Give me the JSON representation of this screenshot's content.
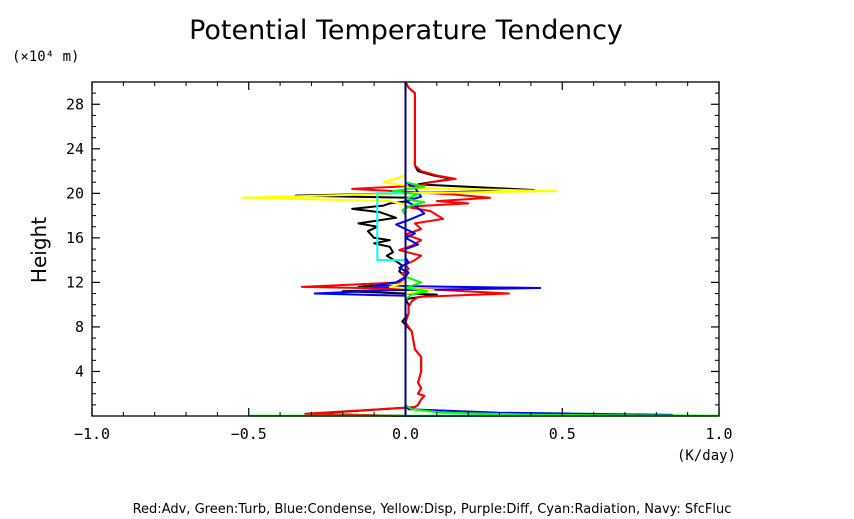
{
  "chart_data": {
    "type": "line",
    "title": "Potential Temperature Tendency",
    "ylabel": "Height",
    "yunit": "(×10⁴ m)",
    "xunit": "(K/day)",
    "xlim": [
      -1.0,
      1.0
    ],
    "ylim": [
      0,
      30
    ],
    "x_ticks": [
      -1.0,
      -0.5,
      0.0,
      0.5,
      1.0
    ],
    "x_tick_labels": [
      "−1.0",
      "−0.5",
      "0.0",
      "0.5",
      "1.0"
    ],
    "y_ticks": [
      4,
      8,
      12,
      16,
      20,
      24,
      28
    ],
    "y_tick_labels": [
      "4",
      "8",
      "12",
      "16",
      "20",
      "24",
      "28"
    ],
    "legend_text": "Red:Adv, Green:Turb, Blue:Condense, Yellow:Disp, Purple:Diff, Cyan:Radiation, Navy: SfcFluc",
    "grid": false,
    "series": [
      {
        "color": "#000000",
        "points": [
          [
            0,
            30
          ],
          [
            0.01,
            29.5
          ],
          [
            0.03,
            29
          ],
          [
            0.03,
            26
          ],
          [
            0.03,
            22.5
          ],
          [
            0.04,
            22
          ],
          [
            0.09,
            21.6
          ],
          [
            0.15,
            21.3
          ],
          [
            0.08,
            21
          ],
          [
            0.04,
            20.8
          ],
          [
            0.41,
            20.3
          ],
          [
            0.0,
            20.0
          ],
          [
            -0.35,
            19.8
          ],
          [
            0.02,
            19.6
          ],
          [
            0.01,
            19.3
          ],
          [
            -0.05,
            19.1
          ],
          [
            -0.07,
            18.9
          ],
          [
            -0.17,
            18.6
          ],
          [
            -0.08,
            18.3
          ],
          [
            -0.03,
            17.8
          ],
          [
            -0.08,
            17.6
          ],
          [
            -0.15,
            17.3
          ],
          [
            -0.09,
            17.0
          ],
          [
            -0.12,
            16.6
          ],
          [
            -0.1,
            16.0
          ],
          [
            -0.05,
            15.8
          ],
          [
            -0.1,
            15.5
          ],
          [
            -0.05,
            15.2
          ],
          [
            -0.04,
            14.7
          ],
          [
            -0.06,
            14.4
          ],
          [
            -0.03,
            13.9
          ],
          [
            -0.01,
            13.5
          ],
          [
            -0.02,
            13.0
          ],
          [
            0.0,
            12.5
          ],
          [
            -0.02,
            12.0
          ],
          [
            -0.15,
            11.6
          ],
          [
            0.05,
            11.4
          ],
          [
            -0.2,
            11.2
          ],
          [
            0.1,
            10.9
          ],
          [
            0.0,
            10.5
          ],
          [
            0.01,
            10.0
          ],
          [
            0.01,
            9.2
          ],
          [
            -0.01,
            8.5
          ],
          [
            0.02,
            7.6
          ],
          [
            0.03,
            6.0
          ],
          [
            0.05,
            5.3
          ],
          [
            0.05,
            4.0
          ],
          [
            0.04,
            3.0
          ],
          [
            0.05,
            2.5
          ],
          [
            0.04,
            2.0
          ],
          [
            0.06,
            1.8
          ],
          [
            0.05,
            1.5
          ],
          [
            0.04,
            1.0
          ],
          [
            0.03,
            0.8
          ],
          [
            -0.3,
            0.2
          ],
          [
            0.0,
            0.0
          ]
        ]
      },
      {
        "color": "#ff0000",
        "points": [
          [
            0,
            30
          ],
          [
            0.01,
            29.5
          ],
          [
            0.03,
            29
          ],
          [
            0.03,
            26
          ],
          [
            0.03,
            22.5
          ],
          [
            0.05,
            22
          ],
          [
            0.1,
            21.6
          ],
          [
            0.16,
            21.3
          ],
          [
            0.08,
            21
          ],
          [
            0.05,
            20.7
          ],
          [
            -0.17,
            20.4
          ],
          [
            0.03,
            20.1
          ],
          [
            0.15,
            19.9
          ],
          [
            0.27,
            19.6
          ],
          [
            0.1,
            19.3
          ],
          [
            0.2,
            19.1
          ],
          [
            0.0,
            18.8
          ],
          [
            0.08,
            18.4
          ],
          [
            0.12,
            17.7
          ],
          [
            0.03,
            17.3
          ],
          [
            0.05,
            16.8
          ],
          [
            0.0,
            16.3
          ],
          [
            0.05,
            15.8
          ],
          [
            0.02,
            15.3
          ],
          [
            -0.02,
            14.9
          ],
          [
            0.05,
            14.4
          ],
          [
            0.03,
            14.0
          ],
          [
            0.0,
            13.6
          ],
          [
            0.01,
            13.2
          ],
          [
            -0.01,
            12.8
          ],
          [
            0.0,
            12.4
          ],
          [
            -0.02,
            12.0
          ],
          [
            -0.33,
            11.6
          ],
          [
            0.06,
            11.4
          ],
          [
            0.33,
            11.0
          ],
          [
            0.04,
            10.7
          ],
          [
            0.02,
            10.3
          ],
          [
            0.01,
            9.8
          ],
          [
            0.01,
            9.2
          ],
          [
            0.0,
            8.4
          ],
          [
            0.02,
            7.6
          ],
          [
            0.03,
            6.0
          ],
          [
            0.05,
            5.3
          ],
          [
            0.05,
            4.0
          ],
          [
            0.04,
            3.0
          ],
          [
            0.05,
            2.5
          ],
          [
            0.04,
            2.0
          ],
          [
            0.06,
            1.8
          ],
          [
            0.05,
            1.5
          ],
          [
            0.04,
            1.0
          ],
          [
            0.03,
            0.8
          ],
          [
            -0.32,
            0.2
          ],
          [
            0.0,
            0.0
          ]
        ]
      },
      {
        "color": "#0000ff",
        "points": [
          [
            0,
            30
          ],
          [
            0,
            22
          ],
          [
            0.0,
            21.0
          ],
          [
            0.03,
            20.5
          ],
          [
            0.05,
            19.7
          ],
          [
            0.0,
            19.3
          ],
          [
            0.03,
            18.9
          ],
          [
            0.06,
            18.2
          ],
          [
            0.01,
            17.6
          ],
          [
            -0.03,
            17.2
          ],
          [
            0.0,
            16.8
          ],
          [
            0.03,
            16.4
          ],
          [
            0.0,
            16.0
          ],
          [
            0.04,
            15.4
          ],
          [
            0.0,
            15.0
          ],
          [
            0.0,
            14.2
          ],
          [
            0.01,
            13.8
          ],
          [
            -0.02,
            13.3
          ],
          [
            0.01,
            12.9
          ],
          [
            0.0,
            12.5
          ],
          [
            -0.03,
            12.0
          ],
          [
            -0.1,
            11.7
          ],
          [
            0.43,
            11.5
          ],
          [
            -0.05,
            11.3
          ],
          [
            -0.29,
            11.0
          ],
          [
            0.0,
            10.8
          ],
          [
            0.0,
            10.0
          ],
          [
            0.0,
            5.0
          ],
          [
            0.0,
            1.0
          ],
          [
            0.01,
            0.6
          ],
          [
            0.3,
            0.3
          ],
          [
            0.85,
            0.1
          ],
          [
            0.0,
            0.0
          ]
        ]
      },
      {
        "color": "#ffff00",
        "points": [
          [
            0,
            30
          ],
          [
            0.0,
            21.6
          ],
          [
            -0.07,
            21.0
          ],
          [
            0.0,
            20.7
          ],
          [
            0.01,
            20.5
          ],
          [
            0.48,
            20.2
          ],
          [
            0.0,
            20.0
          ],
          [
            -0.52,
            19.6
          ],
          [
            -0.05,
            19.3
          ],
          [
            0.0,
            19.0
          ],
          [
            0.0,
            18.0
          ],
          [
            0.0,
            14.0
          ],
          [
            0.0,
            12.0
          ],
          [
            -0.05,
            11.6
          ],
          [
            0.09,
            11.3
          ],
          [
            0.0,
            11.0
          ],
          [
            0.0,
            5.0
          ],
          [
            0.0,
            0.0
          ]
        ]
      },
      {
        "color": "#00ff00",
        "points": [
          [
            0,
            30
          ],
          [
            0.0,
            21.0
          ],
          [
            0.06,
            20.6
          ],
          [
            -0.04,
            20.2
          ],
          [
            0.04,
            19.9
          ],
          [
            0.0,
            19.5
          ],
          [
            0.06,
            19.2
          ],
          [
            0.02,
            18.9
          ],
          [
            -0.01,
            18.5
          ],
          [
            0.0,
            18.0
          ],
          [
            0.0,
            12.5
          ],
          [
            0.05,
            12.0
          ],
          [
            0.0,
            11.5
          ],
          [
            0.07,
            11.2
          ],
          [
            0.02,
            10.9
          ],
          [
            0.0,
            10.5
          ],
          [
            0.0,
            1.0
          ],
          [
            0.02,
            0.6
          ],
          [
            0.12,
            0.3
          ],
          [
            0.45,
            0.1
          ],
          [
            1.0,
            0.02
          ],
          [
            0,
            0.02
          ],
          [
            -0.5,
            0.02
          ]
        ]
      },
      {
        "color": "#00ffff",
        "points": [
          [
            -0.01,
            20
          ],
          [
            -0.09,
            20
          ],
          [
            -0.09,
            14
          ],
          [
            0.0,
            14
          ]
        ]
      },
      {
        "color": "#000080",
        "points": [
          [
            0,
            0
          ],
          [
            0,
            30
          ]
        ]
      }
    ]
  }
}
